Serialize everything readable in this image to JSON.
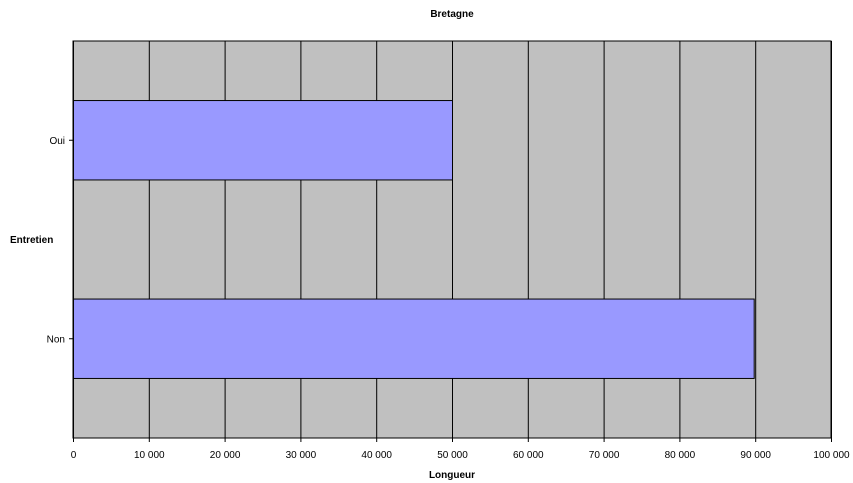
{
  "chart_data": {
    "type": "bar",
    "orientation": "horizontal",
    "title": "Bretagne",
    "xlabel": "Longueur",
    "ylabel": "Entretien",
    "categories": [
      "Oui",
      "Non"
    ],
    "values": [
      50000,
      89800
    ],
    "xlim": [
      0,
      100000
    ],
    "x_ticks": [
      0,
      10000,
      20000,
      30000,
      40000,
      50000,
      60000,
      70000,
      80000,
      90000,
      100000
    ],
    "x_tick_labels": [
      "0",
      "10 000",
      "20 000",
      "30 000",
      "40 000",
      "50 000",
      "60 000",
      "70 000",
      "80 000",
      "90 000",
      "100 000"
    ],
    "grid": "vertical",
    "legend": "none",
    "colors": {
      "bar_fill": "#9999ff",
      "bar_stroke": "#000000",
      "plot_background": "#c0c0c0",
      "grid": "#000000"
    }
  }
}
